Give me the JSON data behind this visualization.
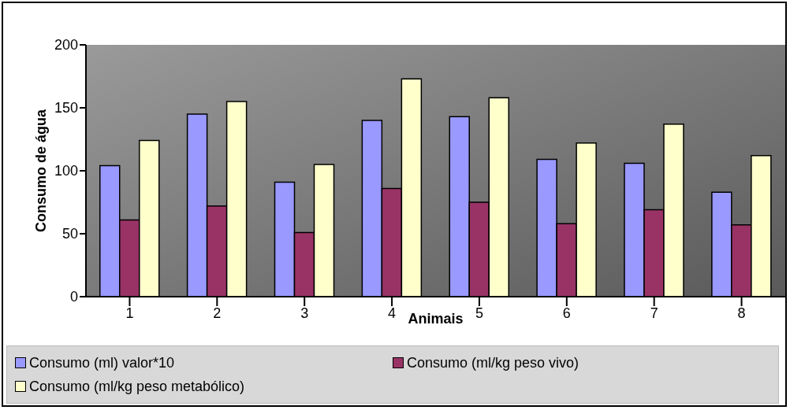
{
  "chart_data": {
    "type": "bar",
    "xlabel": "Animais",
    "ylabel": "Consumo de água",
    "categories": [
      "1",
      "2",
      "3",
      "4",
      "5",
      "6",
      "7",
      "8"
    ],
    "series": [
      {
        "name": "Consumo (ml) valor*10",
        "color": "#9999ff",
        "values": [
          104,
          145,
          91,
          140,
          143,
          109,
          106,
          83
        ]
      },
      {
        "name": "Consumo (ml/kg peso vivo)",
        "color": "#993366",
        "values": [
          61,
          72,
          51,
          86,
          75,
          58,
          69,
          57
        ]
      },
      {
        "name": "Consumo (ml/kg peso metabólico)",
        "color": "#ffffcc",
        "values": [
          124,
          155,
          105,
          173,
          158,
          122,
          137,
          112
        ]
      }
    ],
    "ylim": [
      0,
      200
    ],
    "yticks": [
      0,
      50,
      100,
      150,
      200
    ],
    "grid": false,
    "legend": "bottom"
  }
}
